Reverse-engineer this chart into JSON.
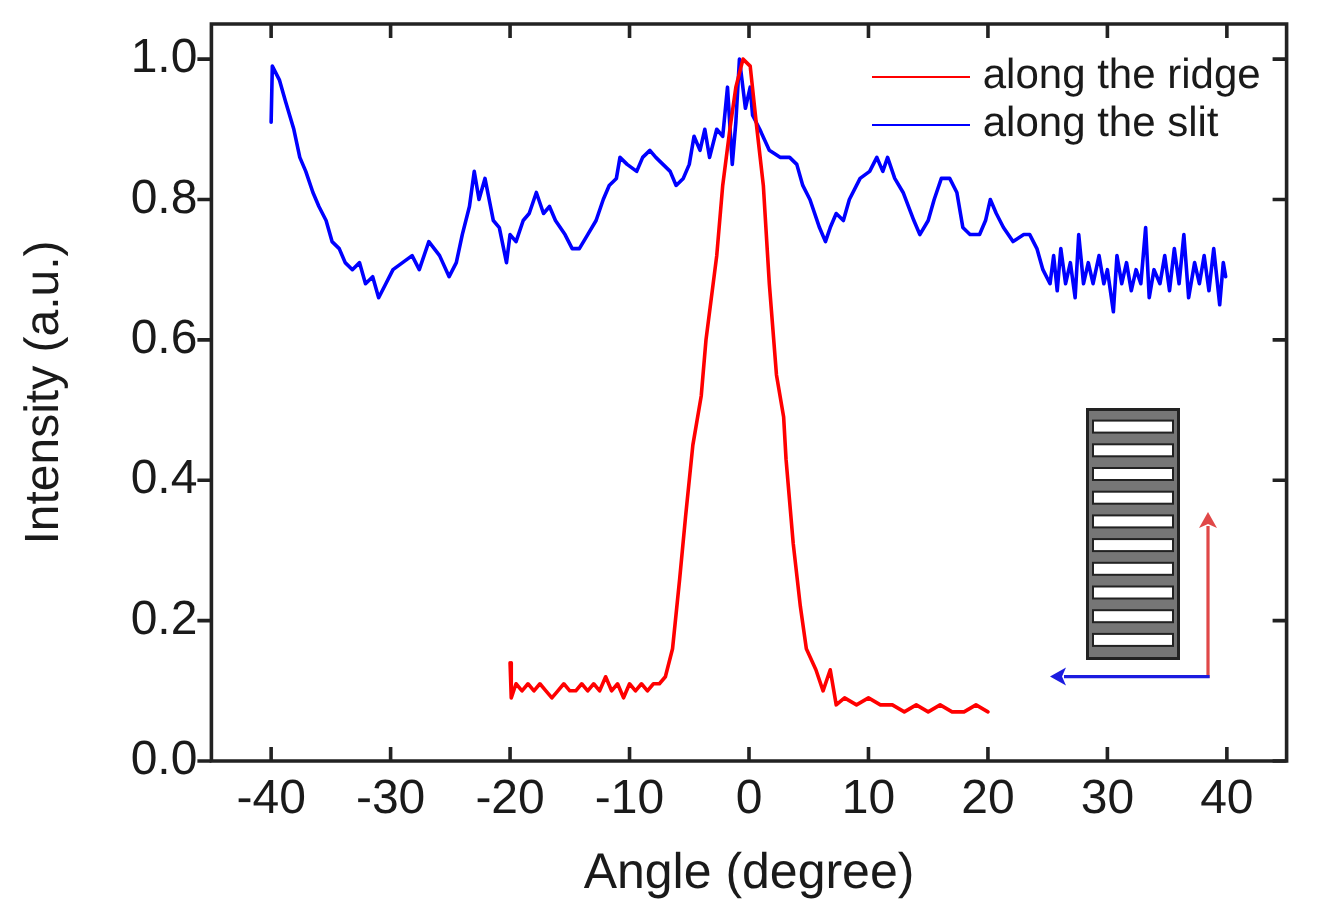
{
  "chart_data": {
    "type": "line",
    "xlabel": "Angle (degree)",
    "ylabel": "Intensity (a.u.)",
    "xlim": [
      -45,
      45
    ],
    "xticks": [
      -40,
      -30,
      -20,
      -10,
      0,
      10,
      20,
      30,
      40
    ],
    "ylim": [
      0,
      1.05
    ],
    "yticks": [
      {
        "value": 0,
        "label": "0.0"
      },
      0.2,
      0.4,
      0.6,
      0.8,
      {
        "value": 1,
        "label": "1.0"
      }
    ],
    "legend": "top right",
    "marker": "none",
    "series": [
      {
        "name": "along the ridge",
        "color": "#ff0000",
        "x": [
          -20.0,
          -19.9,
          -19.5,
          -19.0,
          -18.5,
          -18.0,
          -17.5,
          -17.0,
          -16.5,
          -16.0,
          -15.5,
          -15.0,
          -14.5,
          -14.0,
          -13.5,
          -13.0,
          -12.5,
          -12.0,
          -11.5,
          -11.0,
          -10.5,
          -10.0,
          -9.5,
          -9.0,
          -8.5,
          -8.0,
          -7.5,
          -7.0,
          -6.4,
          -5.8,
          -5.3,
          -4.7,
          -4.0,
          -3.6,
          -2.7,
          -2.2,
          -1.6,
          -1.1,
          -0.5,
          0.1,
          0.6,
          1.2,
          1.7,
          2.3,
          2.9,
          3.1,
          3.7,
          4.3,
          4.8,
          5.6,
          6.2,
          6.8,
          7.3,
          8.0,
          9.0,
          10.0,
          11.0,
          12.0,
          13.0,
          14.0,
          15.0,
          16.0,
          17.0,
          18.0,
          19.0,
          20.0
        ],
        "values": [
          0.14,
          0.09,
          0.11,
          0.1,
          0.11,
          0.1,
          0.11,
          0.1,
          0.09,
          0.1,
          0.11,
          0.1,
          0.1,
          0.11,
          0.1,
          0.11,
          0.1,
          0.12,
          0.1,
          0.11,
          0.09,
          0.11,
          0.1,
          0.11,
          0.1,
          0.11,
          0.11,
          0.12,
          0.16,
          0.26,
          0.35,
          0.45,
          0.52,
          0.6,
          0.72,
          0.82,
          0.9,
          0.96,
          1.0,
          0.99,
          0.91,
          0.82,
          0.68,
          0.55,
          0.49,
          0.43,
          0.31,
          0.22,
          0.16,
          0.13,
          0.1,
          0.13,
          0.08,
          0.09,
          0.08,
          0.09,
          0.08,
          0.08,
          0.07,
          0.08,
          0.07,
          0.08,
          0.07,
          0.07,
          0.08,
          0.07
        ]
      },
      {
        "name": "along the slit",
        "color": "#0000ff",
        "x": [
          -40.0,
          -39.9,
          -39.3,
          -38.8,
          -38.1,
          -37.6,
          -37.1,
          -36.5,
          -36.0,
          -35.4,
          -34.9,
          -34.3,
          -33.8,
          -33.2,
          -32.6,
          -32.1,
          -31.5,
          -31.0,
          -30.4,
          -29.8,
          -29.0,
          -28.2,
          -27.6,
          -26.8,
          -25.9,
          -25.1,
          -24.5,
          -24.0,
          -23.4,
          -23.0,
          -22.6,
          -22.1,
          -21.4,
          -20.9,
          -20.3,
          -20.0,
          -19.5,
          -18.9,
          -18.4,
          -17.8,
          -17.2,
          -16.7,
          -16.2,
          -15.4,
          -14.8,
          -14.2,
          -13.5,
          -12.8,
          -12.2,
          -11.7,
          -11.1,
          -10.8,
          -10.2,
          -9.4,
          -8.9,
          -8.3,
          -7.8,
          -7.2,
          -6.6,
          -6.1,
          -5.5,
          -5.0,
          -4.6,
          -4.1,
          -3.7,
          -3.3,
          -2.7,
          -2.2,
          -1.8,
          -1.4,
          -1.1,
          -0.8,
          -0.3,
          0.1,
          0.3,
          0.9,
          1.7,
          2.6,
          3.4,
          4.0,
          4.5,
          5.1,
          5.9,
          6.4,
          6.8,
          7.3,
          7.9,
          8.4,
          9.3,
          10.1,
          10.7,
          11.2,
          11.6,
          12.2,
          12.9,
          13.8,
          14.3,
          15.0,
          15.5,
          16.1,
          16.8,
          17.4,
          17.9,
          18.5,
          19.3,
          19.8,
          20.2,
          20.7,
          21.3,
          22.1,
          23.0,
          23.5,
          24.1,
          24.6,
          25.2,
          25.5,
          25.8,
          26.1,
          26.5,
          26.9,
          27.3,
          27.6,
          28.0,
          28.4,
          28.8,
          29.3,
          29.7,
          30.0,
          30.5,
          30.8,
          31.2,
          31.6,
          32.0,
          32.4,
          32.8,
          33.2,
          33.5,
          33.9,
          34.4,
          34.8,
          35.2,
          35.6,
          36.0,
          36.4,
          36.8,
          37.3,
          37.7,
          38.1,
          38.5,
          38.9,
          39.4,
          39.7,
          39.9
        ],
        "values": [
          0.91,
          0.99,
          0.97,
          0.94,
          0.9,
          0.86,
          0.84,
          0.81,
          0.79,
          0.77,
          0.74,
          0.73,
          0.71,
          0.7,
          0.71,
          0.68,
          0.69,
          0.66,
          0.68,
          0.7,
          0.71,
          0.72,
          0.7,
          0.74,
          0.72,
          0.69,
          0.71,
          0.75,
          0.79,
          0.84,
          0.8,
          0.83,
          0.77,
          0.76,
          0.71,
          0.75,
          0.74,
          0.77,
          0.78,
          0.81,
          0.78,
          0.79,
          0.77,
          0.75,
          0.73,
          0.73,
          0.75,
          0.77,
          0.8,
          0.82,
          0.83,
          0.86,
          0.85,
          0.84,
          0.86,
          0.87,
          0.86,
          0.85,
          0.84,
          0.82,
          0.83,
          0.85,
          0.89,
          0.87,
          0.9,
          0.86,
          0.9,
          0.89,
          0.96,
          0.85,
          0.91,
          1.0,
          0.93,
          0.96,
          0.92,
          0.9,
          0.87,
          0.86,
          0.86,
          0.85,
          0.82,
          0.8,
          0.76,
          0.74,
          0.76,
          0.78,
          0.77,
          0.8,
          0.83,
          0.84,
          0.86,
          0.84,
          0.86,
          0.83,
          0.81,
          0.77,
          0.75,
          0.77,
          0.8,
          0.83,
          0.83,
          0.81,
          0.76,
          0.75,
          0.75,
          0.77,
          0.8,
          0.78,
          0.76,
          0.74,
          0.75,
          0.75,
          0.73,
          0.7,
          0.68,
          0.72,
          0.67,
          0.73,
          0.68,
          0.71,
          0.66,
          0.75,
          0.68,
          0.71,
          0.68,
          0.72,
          0.68,
          0.7,
          0.64,
          0.72,
          0.68,
          0.71,
          0.67,
          0.7,
          0.68,
          0.76,
          0.66,
          0.7,
          0.68,
          0.72,
          0.67,
          0.73,
          0.68,
          0.75,
          0.66,
          0.71,
          0.68,
          0.72,
          0.67,
          0.73,
          0.65,
          0.71,
          0.69
        ]
      }
    ]
  }
}
